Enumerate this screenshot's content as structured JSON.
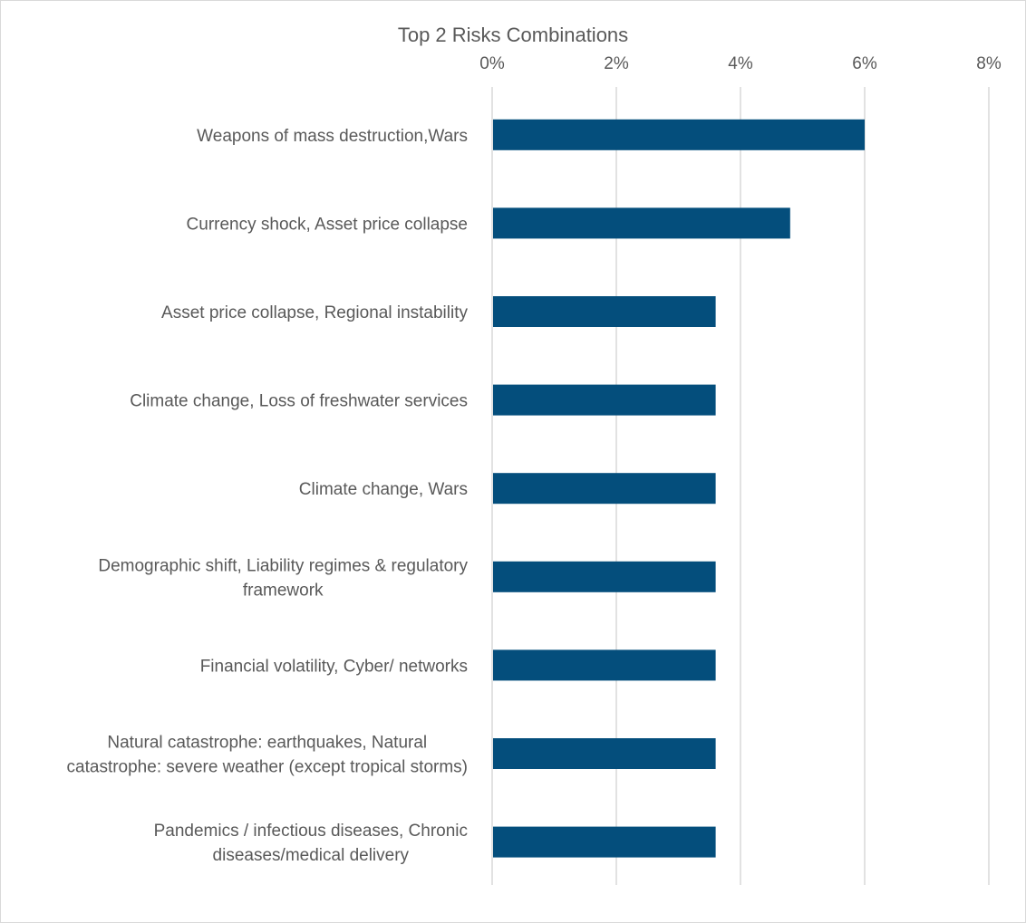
{
  "chart_data": {
    "type": "bar",
    "orientation": "horizontal",
    "title": "Top 2 Risks Combinations",
    "xlabel": "",
    "ylabel": "",
    "x_axis_position": "top",
    "xlim": [
      0,
      8
    ],
    "xticks": [
      0,
      2,
      4,
      6,
      8
    ],
    "xtick_labels": [
      "0%",
      "2%",
      "4%",
      "6%",
      "8%"
    ],
    "grid": true,
    "legend": "none",
    "bar_color": "#044E7C",
    "categories": [
      [
        "Weapons of mass destruction,Wars"
      ],
      [
        "Currency shock, Asset price collapse"
      ],
      [
        "Asset price collapse, Regional instability"
      ],
      [
        "Climate change, Loss of freshwater services"
      ],
      [
        "Climate change, Wars"
      ],
      [
        "Demographic shift, Liability regimes & regulatory",
        "framework"
      ],
      [
        "Financial volatility, Cyber/ networks"
      ],
      [
        "Natural catastrophe: earthquakes, Natural",
        "catastrophe: severe weather (except tropical storms)"
      ],
      [
        "Pandemics / infectious diseases, Chronic",
        "diseases/medical delivery"
      ]
    ],
    "values": [
      6.0,
      4.8,
      3.6,
      3.6,
      3.6,
      3.6,
      3.6,
      3.6,
      3.6
    ]
  }
}
